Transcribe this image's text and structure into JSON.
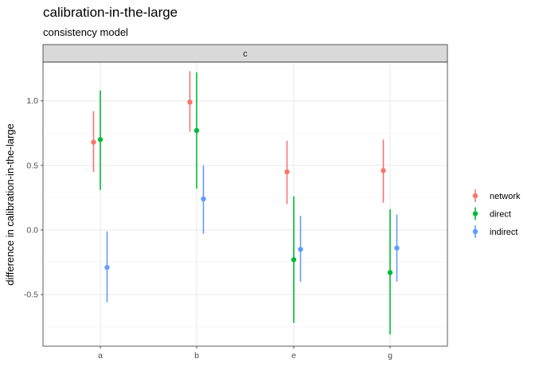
{
  "chart_data": {
    "type": "scatter",
    "title": "calibration-in-the-large",
    "subtitle": "consistency model",
    "facet_label": "c",
    "xlabel": "",
    "ylabel": "difference in calibration-in-the-large",
    "categories": [
      "a",
      "b",
      "e",
      "g"
    ],
    "ylim": [
      -0.9,
      1.3
    ],
    "yticks": [
      -0.5,
      0.0,
      0.5,
      1.0
    ],
    "ytick_labels": [
      "-0.5",
      "0.0",
      "0.5",
      "1.0"
    ],
    "grid": true,
    "legend_position": "right",
    "series": [
      {
        "name": "network",
        "color": "#F8766D",
        "values": [
          0.68,
          0.99,
          0.45,
          0.46
        ],
        "lower": [
          0.45,
          0.76,
          0.2,
          0.21
        ],
        "upper": [
          0.92,
          1.23,
          0.69,
          0.7
        ]
      },
      {
        "name": "direct",
        "color": "#00BA38",
        "values": [
          0.7,
          0.77,
          -0.23,
          -0.33
        ],
        "lower": [
          0.31,
          0.32,
          -0.72,
          -0.81
        ],
        "upper": [
          1.08,
          1.22,
          0.26,
          0.16
        ]
      },
      {
        "name": "indirect",
        "color": "#619CFF",
        "values": [
          -0.29,
          0.24,
          -0.15,
          -0.14
        ],
        "lower": [
          -0.56,
          -0.03,
          -0.4,
          -0.4
        ],
        "upper": [
          -0.01,
          0.5,
          0.11,
          0.12
        ]
      }
    ]
  }
}
